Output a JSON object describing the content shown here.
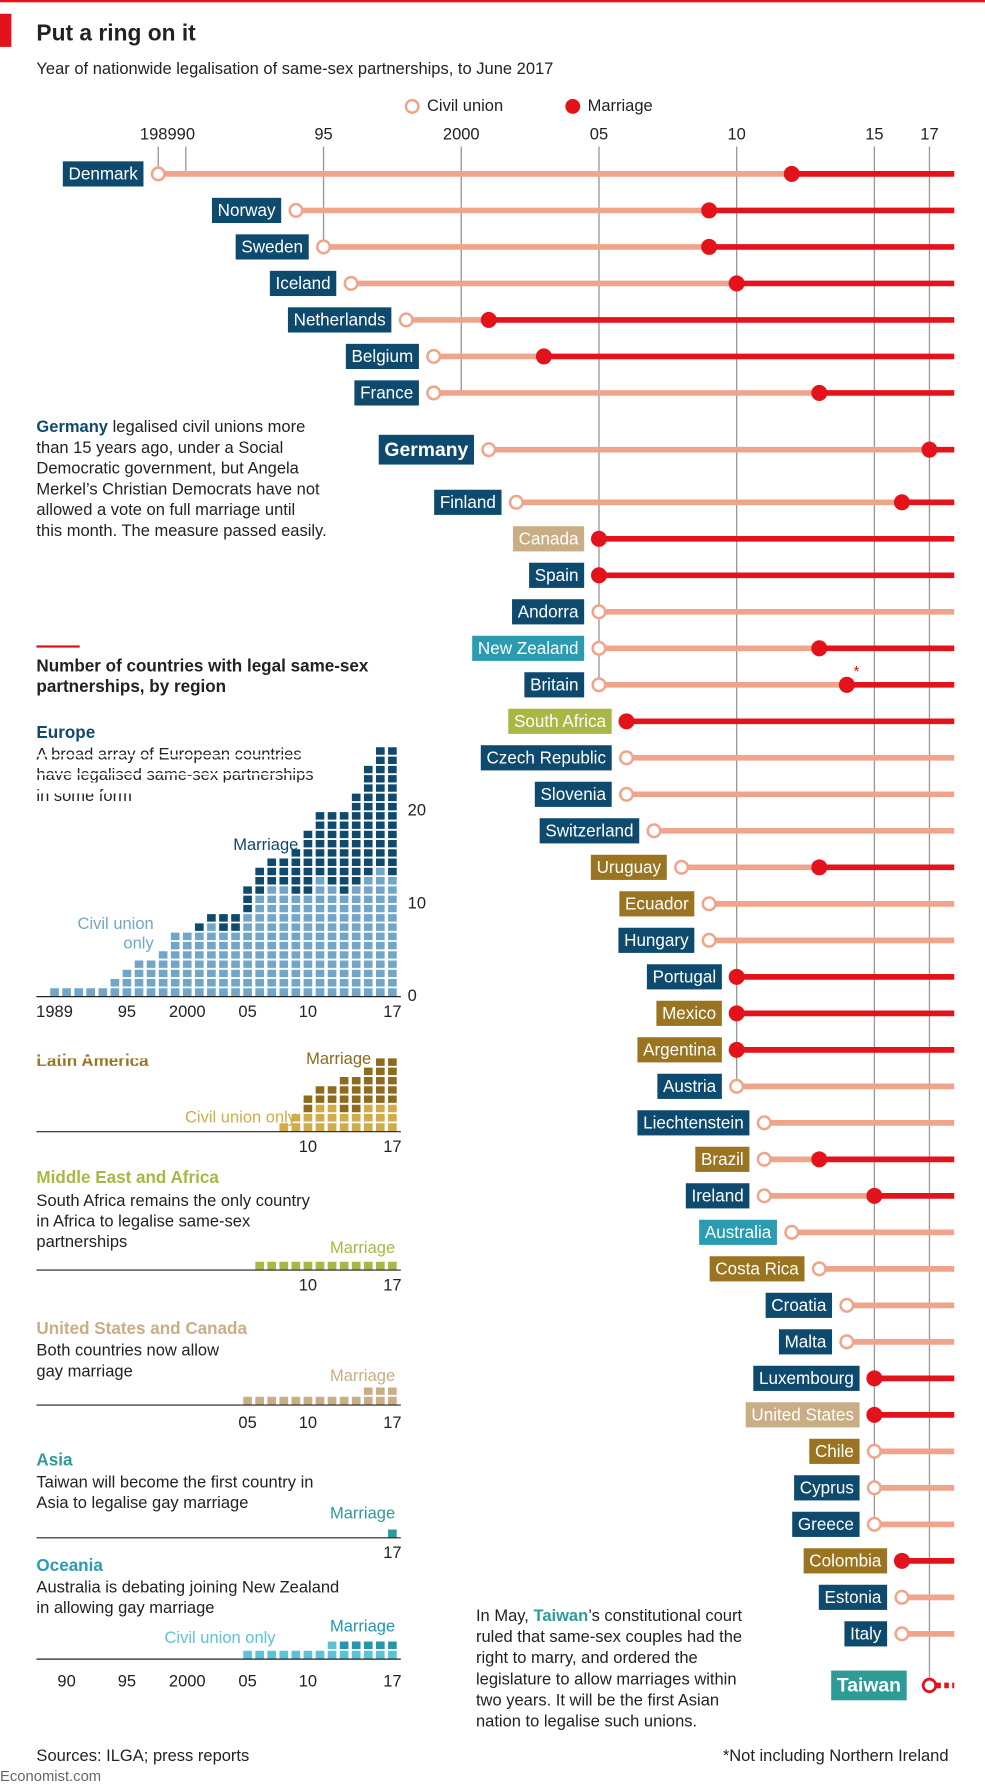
{
  "header": {
    "title": "Put a ring on it",
    "subtitle": "Year of nationwide legalisation of same-sex partnerships, to June 2017"
  },
  "section": {
    "lines": [
      "Number of countries with legal same-sex",
      "partnerships, by region"
    ]
  },
  "footer": {
    "source": "Sources: ILGA; press reports",
    "brand": "Economist.com"
  },
  "chart_data": [
    {
      "type": "timeline",
      "legend": [
        {
          "name": "Civil union",
          "color": "#f0a48c"
        },
        {
          "name": "Marriage",
          "color": "#e3121b"
        }
      ],
      "xlim": [
        1989,
        2017.9
      ],
      "xticks": [
        1989,
        {
          "value": 1990,
          "label": "90"
        },
        {
          "value": 1995,
          "label": "95"
        },
        2000,
        {
          "value": 2005,
          "label": "05"
        },
        {
          "value": 2010,
          "label": "10"
        },
        {
          "value": 2015,
          "label": "15"
        },
        {
          "value": 2017,
          "label": "17"
        }
      ],
      "countries": [
        {
          "name": "Denmark",
          "color": "#0e4a6e",
          "civil_union": 1989,
          "marriage": 2012
        },
        {
          "name": "Norway",
          "color": "#0e4a6e",
          "civil_union": 1994,
          "marriage": 2009
        },
        {
          "name": "Sweden",
          "color": "#0e4a6e",
          "civil_union": 1995,
          "marriage": 2009
        },
        {
          "name": "Iceland",
          "color": "#0e4a6e",
          "civil_union": 1996,
          "marriage": 2010
        },
        {
          "name": "Netherlands",
          "color": "#0e4a6e",
          "civil_union": 1998,
          "marriage": 2001
        },
        {
          "name": "Belgium",
          "color": "#0e4a6e",
          "civil_union": 1999,
          "marriage": 2003
        },
        {
          "name": "France",
          "color": "#0e4a6e",
          "civil_union": 1999,
          "marriage": 2013
        },
        {
          "name": "Germany",
          "color": "#0e4a6e",
          "civil_union": 2001,
          "marriage": 2017
        },
        {
          "name": "Finland",
          "color": "#0e4a6e",
          "civil_union": 2002,
          "marriage": 2016
        },
        {
          "name": "Canada",
          "color": "#c9ad85",
          "civil_union": null,
          "marriage": 2005
        },
        {
          "name": "Spain",
          "color": "#0e4a6e",
          "civil_union": null,
          "marriage": 2005
        },
        {
          "name": "Andorra",
          "color": "#0e4a6e",
          "civil_union": 2005,
          "marriage": null
        },
        {
          "name": "New Zealand",
          "color": "#2a9bb0",
          "civil_union": 2005,
          "marriage": 2013
        },
        {
          "name": "Britain",
          "color": "#0e4a6e",
          "civil_union": 2005,
          "marriage": 2014,
          "note": "*"
        },
        {
          "name": "South Africa",
          "color": "#a9b744",
          "civil_union": null,
          "marriage": 2006
        },
        {
          "name": "Czech Republic",
          "color": "#0e4a6e",
          "civil_union": 2006,
          "marriage": null
        },
        {
          "name": "Slovenia",
          "color": "#0e4a6e",
          "civil_union": 2006,
          "marriage": null
        },
        {
          "name": "Switzerland",
          "color": "#0e4a6e",
          "civil_union": 2007,
          "marriage": null
        },
        {
          "name": "Uruguay",
          "color": "#9a7420",
          "civil_union": 2008,
          "marriage": 2013
        },
        {
          "name": "Ecuador",
          "color": "#9a7420",
          "civil_union": 2009,
          "marriage": null
        },
        {
          "name": "Hungary",
          "color": "#0e4a6e",
          "civil_union": 2009,
          "marriage": null
        },
        {
          "name": "Portugal",
          "color": "#0e4a6e",
          "civil_union": null,
          "marriage": 2010
        },
        {
          "name": "Mexico",
          "color": "#9a7420",
          "civil_union": null,
          "marriage": 2010
        },
        {
          "name": "Argentina",
          "color": "#9a7420",
          "civil_union": null,
          "marriage": 2010
        },
        {
          "name": "Austria",
          "color": "#0e4a6e",
          "civil_union": 2010,
          "marriage": null
        },
        {
          "name": "Liechtenstein",
          "color": "#0e4a6e",
          "civil_union": 2011,
          "marriage": null
        },
        {
          "name": "Brazil",
          "color": "#9a7420",
          "civil_union": 2011,
          "marriage": 2013
        },
        {
          "name": "Ireland",
          "color": "#0e4a6e",
          "civil_union": 2011,
          "marriage": 2015
        },
        {
          "name": "Australia",
          "color": "#2a9bb0",
          "civil_union": 2012,
          "marriage": null
        },
        {
          "name": "Costa Rica",
          "color": "#9a7420",
          "civil_union": 2013,
          "marriage": null
        },
        {
          "name": "Croatia",
          "color": "#0e4a6e",
          "civil_union": 2014,
          "marriage": null
        },
        {
          "name": "Malta",
          "color": "#0e4a6e",
          "civil_union": 2014,
          "marriage": null
        },
        {
          "name": "Luxembourg",
          "color": "#0e4a6e",
          "civil_union": null,
          "marriage": 2015
        },
        {
          "name": "United States",
          "color": "#c9ad85",
          "civil_union": null,
          "marriage": 2015
        },
        {
          "name": "Chile",
          "color": "#9a7420",
          "civil_union": 2015,
          "marriage": null
        },
        {
          "name": "Cyprus",
          "color": "#0e4a6e",
          "civil_union": 2015,
          "marriage": null
        },
        {
          "name": "Greece",
          "color": "#0e4a6e",
          "civil_union": 2015,
          "marriage": null
        },
        {
          "name": "Colombia",
          "color": "#9a7420",
          "civil_union": null,
          "marriage": 2016
        },
        {
          "name": "Estonia",
          "color": "#0e4a6e",
          "civil_union": 2016,
          "marriage": null
        },
        {
          "name": "Italy",
          "color": "#0e4a6e",
          "civil_union": 2016,
          "marriage": null
        }
      ],
      "pending": {
        "name": "Taiwan",
        "color": "#2e9c96",
        "marriage": 2017
      },
      "annotations": [
        {
          "lines": [
            [
              {
                "bold": "Germany",
                "color": "#0e4a6e"
              },
              " legalised civil unions more"
            ],
            [
              "than 15 years ago, under a Social"
            ],
            [
              "Democratic government, but Angela"
            ],
            [
              "Merkel’s Christian Democrats have not"
            ],
            [
              "allowed a vote on full marriage until"
            ],
            [
              "this month. The measure passed easily."
            ]
          ]
        },
        {
          "lines": [
            [
              "In May, ",
              {
                "bold": "Taiwan",
                "color": "#2e9c96"
              },
              "’s constitutional court"
            ],
            [
              "ruled that same-sex couples had the"
            ],
            [
              "right to marry, and ordered the"
            ],
            [
              "legislature to allow marriages within"
            ],
            [
              "two years. It will be the first Asian"
            ],
            [
              "nation to legalise such unions."
            ]
          ]
        }
      ],
      "footnote": "*Not including Northern Ireland"
    },
    {
      "type": "bar",
      "title": "Europe",
      "title_color": "#0e4a6e",
      "description": [
        "A broad array of European countries",
        "have legalised same-sex partnerships",
        "in some form"
      ],
      "x": [
        1989,
        1990,
        1991,
        1992,
        1993,
        1994,
        1995,
        1996,
        1997,
        1998,
        1999,
        2000,
        2001,
        2002,
        2003,
        2004,
        2005,
        2006,
        2007,
        2008,
        2009,
        2010,
        2011,
        2012,
        2013,
        2014,
        2015,
        2016,
        2017
      ],
      "series": [
        {
          "name": "Civil union only",
          "color": "#72a6c9",
          "values": [
            1,
            1,
            1,
            1,
            1,
            2,
            3,
            4,
            4,
            5,
            7,
            7,
            7,
            8,
            7,
            7,
            9,
            11,
            12,
            12,
            11,
            11,
            13,
            12,
            11,
            12,
            13,
            14,
            13
          ]
        },
        {
          "name": "Marriage",
          "color": "#0e4a6e",
          "values": [
            0,
            0,
            0,
            0,
            0,
            0,
            0,
            0,
            0,
            0,
            0,
            0,
            1,
            1,
            2,
            2,
            3,
            3,
            3,
            3,
            5,
            7,
            7,
            8,
            9,
            10,
            12,
            13,
            14
          ]
        }
      ],
      "xlim": [
        1987.5,
        2017.7
      ],
      "ylim": [
        0,
        27
      ],
      "yticks": [
        0,
        10,
        20
      ],
      "xticks": [
        1989,
        {
          "value": 1995,
          "label": "95"
        },
        2000,
        {
          "value": 2005,
          "label": "05"
        },
        {
          "value": 2010,
          "label": "10"
        },
        {
          "value": 2017,
          "label": "17"
        }
      ]
    },
    {
      "type": "bar",
      "title": "Latin America",
      "title_color": "#9a7420",
      "x": [
        2008,
        2009,
        2010,
        2011,
        2012,
        2013,
        2014,
        2015,
        2016,
        2017
      ],
      "series": [
        {
          "name": "Civil union only",
          "color": "#d0ab48",
          "values": [
            1,
            2,
            2,
            3,
            3,
            2,
            2,
            3,
            3,
            3
          ]
        },
        {
          "name": "Marriage",
          "color": "#8d6a1c",
          "values": [
            0,
            0,
            2,
            2,
            2,
            4,
            4,
            4,
            5,
            5
          ]
        }
      ],
      "xlim": [
        1987.5,
        2017.7
      ],
      "ylim": [
        0,
        8
      ],
      "xticks": [
        {
          "value": 2010,
          "label": "10"
        },
        {
          "value": 2017,
          "label": "17"
        }
      ]
    },
    {
      "type": "bar",
      "title": "Middle East and Africa",
      "title_color": "#a9b744",
      "description": [
        "South Africa remains the only country",
        "in Africa to legalise same-sex",
        "partnerships"
      ],
      "x": [
        2006,
        2007,
        2008,
        2009,
        2010,
        2011,
        2012,
        2013,
        2014,
        2015,
        2016,
        2017
      ],
      "series": [
        {
          "name": "Marriage",
          "color": "#a9b744",
          "values": [
            1,
            1,
            1,
            1,
            1,
            1,
            1,
            1,
            1,
            1,
            1,
            1
          ]
        }
      ],
      "xlim": [
        1987.5,
        2017.7
      ],
      "ylim": [
        0,
        1
      ],
      "xticks": [
        {
          "value": 2010,
          "label": "10"
        },
        {
          "value": 2017,
          "label": "17"
        }
      ]
    },
    {
      "type": "bar",
      "title": "United States and Canada",
      "title_color": "#c9ad85",
      "description": [
        "Both countries now allow",
        "gay marriage"
      ],
      "x": [
        2005,
        2006,
        2007,
        2008,
        2009,
        2010,
        2011,
        2012,
        2013,
        2014,
        2015,
        2016,
        2017
      ],
      "series": [
        {
          "name": "Marriage",
          "color": "#c9ad85",
          "values": [
            1,
            1,
            1,
            1,
            1,
            1,
            1,
            1,
            1,
            1,
            2,
            2,
            2
          ]
        }
      ],
      "xlim": [
        1987.5,
        2017.7
      ],
      "ylim": [
        0,
        2
      ],
      "xticks": [
        {
          "value": 2005,
          "label": "05"
        },
        {
          "value": 2010,
          "label": "10"
        },
        {
          "value": 2017,
          "label": "17"
        }
      ]
    },
    {
      "type": "bar",
      "title": "Asia",
      "title_color": "#2e9c96",
      "description": [
        "Taiwan will become the first country in",
        "Asia to legalise gay marriage"
      ],
      "x": [
        2017
      ],
      "series": [
        {
          "name": "Marriage",
          "color": "#2e9c96",
          "values": [
            1
          ]
        }
      ],
      "xlim": [
        1987.5,
        2017.7
      ],
      "ylim": [
        0,
        1
      ],
      "xticks": [
        {
          "value": 2017,
          "label": "17"
        }
      ]
    },
    {
      "type": "bar",
      "title": "Oceania",
      "title_color": "#2a9bb0",
      "description": [
        "Australia is debating joining New Zealand",
        "in allowing gay marriage"
      ],
      "x": [
        2005,
        2006,
        2007,
        2008,
        2009,
        2010,
        2011,
        2012,
        2013,
        2014,
        2015,
        2016,
        2017
      ],
      "series": [
        {
          "name": "Civil union only",
          "color": "#5cc3d6",
          "values": [
            1,
            1,
            1,
            1,
            1,
            1,
            1,
            2,
            1,
            1,
            1,
            1,
            1
          ]
        },
        {
          "name": "Marriage",
          "color": "#2496ad",
          "values": [
            0,
            0,
            0,
            0,
            0,
            0,
            0,
            0,
            1,
            1,
            1,
            1,
            1
          ]
        }
      ],
      "xlim": [
        1987.5,
        2017.7
      ],
      "ylim": [
        0,
        2
      ],
      "xticks": [
        {
          "value": 1990,
          "label": "90"
        },
        {
          "value": 1995,
          "label": "95"
        },
        2000,
        {
          "value": 2005,
          "label": "05"
        },
        {
          "value": 2010,
          "label": "10"
        },
        {
          "value": 2017,
          "label": "17"
        }
      ]
    }
  ]
}
